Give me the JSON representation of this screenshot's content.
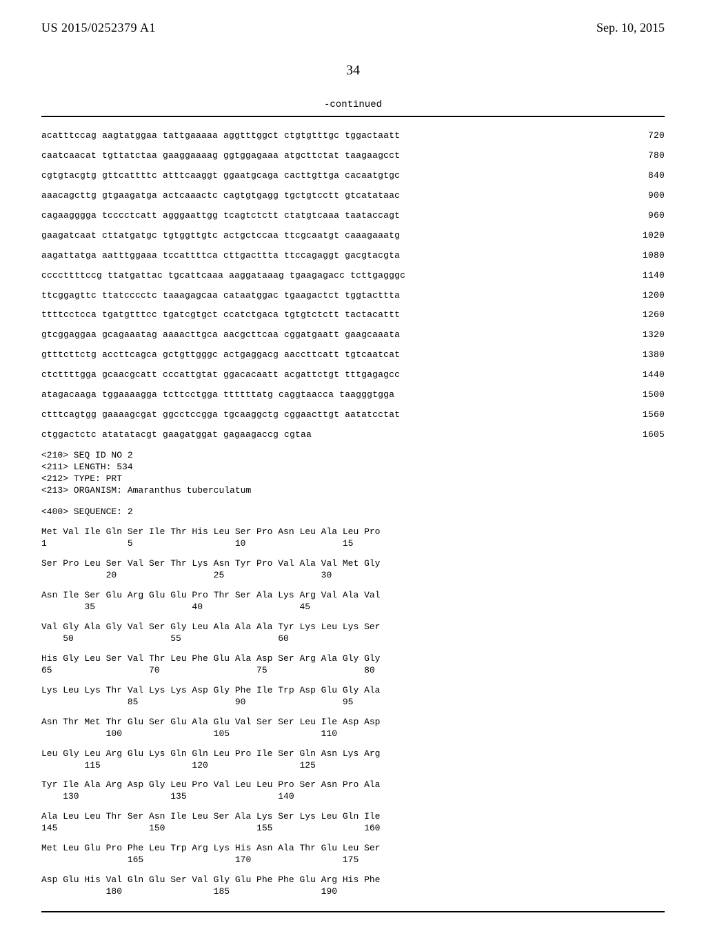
{
  "header": {
    "publication_number": "US 2015/0252379 A1",
    "publication_date": "Sep. 10, 2015"
  },
  "page_number": "34",
  "continued_label": "-continued",
  "nucleotide_lines": [
    {
      "seq": "acatttccag aagtatggaa tattgaaaaa aggtttggct ctgtgtttgc tggactaatt",
      "pos": "720"
    },
    {
      "seq": "caatcaacat tgttatctaa gaaggaaaag ggtggagaaa atgcttctat taagaagcct",
      "pos": "780"
    },
    {
      "seq": "cgtgtacgtg gttcattttc atttcaaggt ggaatgcaga cacttgttga cacaatgtgc",
      "pos": "840"
    },
    {
      "seq": "aaacagcttg gtgaagatga actcaaactc cagtgtgagg tgctgtcctt gtcatataac",
      "pos": "900"
    },
    {
      "seq": "cagaagggga tcccctcatt agggaattgg tcagtctctt ctatgtcaaa taataccagt",
      "pos": "960"
    },
    {
      "seq": "gaagatcaat cttatgatgc tgtggttgtc actgctccaa ttcgcaatgt caaagaaatg",
      "pos": "1020"
    },
    {
      "seq": "aagattatga aatttggaaa tccattttca cttgacttta ttccagaggt gacgtacgta",
      "pos": "1080"
    },
    {
      "seq": "ccccttttccg ttatgattac tgcattcaaa aaggataaag tgaagagacc tcttgagggc",
      "pos": "1140"
    },
    {
      "seq": "ttcggagttc ttatcccctc taaagagcaa cataatggac tgaagactct tggtacttta",
      "pos": "1200"
    },
    {
      "seq": "ttttcctcca tgatgtttcc tgatcgtgct ccatctgaca tgtgtctctt tactacattt",
      "pos": "1260"
    },
    {
      "seq": "gtcggaggaa gcagaaatag aaaacttgca aacgcttcaa cggatgaatt gaagcaaata",
      "pos": "1320"
    },
    {
      "seq": "gtttcttctg accttcagca gctgttgggc actgaggacg aaccttcatt tgtcaatcat",
      "pos": "1380"
    },
    {
      "seq": "ctcttttgga gcaacgcatt cccattgtat ggacacaatt acgattctgt tttgagagcc",
      "pos": "1440"
    },
    {
      "seq": "atagacaaga tggaaaagga tcttcctgga ttttttatg caggtaacca taagggtgga",
      "pos": "1500"
    },
    {
      "seq": "ctttcagtgg gaaaagcgat ggcctccgga tgcaaggctg cggaacttgt aatatcctat",
      "pos": "1560"
    },
    {
      "seq": "ctggactctc atatatacgt gaagatggat gagaagaccg cgtaa",
      "pos": "1605"
    }
  ],
  "metadata": [
    "<210> SEQ ID NO 2",
    "<211> LENGTH: 534",
    "<212> TYPE: PRT",
    "<213> ORGANISM: Amaranthus tuberculatum"
  ],
  "sequence_label": "<400> SEQUENCE: 2",
  "protein_rows": [
    {
      "aa": "Met Val Ile Gln Ser Ile Thr His Leu Ser Pro Asn Leu Ala Leu Pro",
      "nums": "1               5                   10                  15"
    },
    {
      "aa": "Ser Pro Leu Ser Val Ser Thr Lys Asn Tyr Pro Val Ala Val Met Gly",
      "nums": "            20                  25                  30"
    },
    {
      "aa": "Asn Ile Ser Glu Arg Glu Glu Pro Thr Ser Ala Lys Arg Val Ala Val",
      "nums": "        35                  40                  45"
    },
    {
      "aa": "Val Gly Ala Gly Val Ser Gly Leu Ala Ala Ala Tyr Lys Leu Lys Ser",
      "nums": "    50                  55                  60"
    },
    {
      "aa": "His Gly Leu Ser Val Thr Leu Phe Glu Ala Asp Ser Arg Ala Gly Gly",
      "nums": "65                  70                  75                  80"
    },
    {
      "aa": "Lys Leu Lys Thr Val Lys Lys Asp Gly Phe Ile Trp Asp Glu Gly Ala",
      "nums": "                85                  90                  95"
    },
    {
      "aa": "Asn Thr Met Thr Glu Ser Glu Ala Glu Val Ser Ser Leu Ile Asp Asp",
      "nums": "            100                 105                 110"
    },
    {
      "aa": "Leu Gly Leu Arg Glu Lys Gln Gln Leu Pro Ile Ser Gln Asn Lys Arg",
      "nums": "        115                 120                 125"
    },
    {
      "aa": "Tyr Ile Ala Arg Asp Gly Leu Pro Val Leu Leu Pro Ser Asn Pro Ala",
      "nums": "    130                 135                 140"
    },
    {
      "aa": "Ala Leu Leu Thr Ser Asn Ile Leu Ser Ala Lys Ser Lys Leu Gln Ile",
      "nums": "145                 150                 155                 160"
    },
    {
      "aa": "Met Leu Glu Pro Phe Leu Trp Arg Lys His Asn Ala Thr Glu Leu Ser",
      "nums": "                165                 170                 175"
    },
    {
      "aa": "Asp Glu His Val Gln Glu Ser Val Gly Glu Phe Phe Glu Arg His Phe",
      "nums": "            180                 185                 190"
    }
  ]
}
